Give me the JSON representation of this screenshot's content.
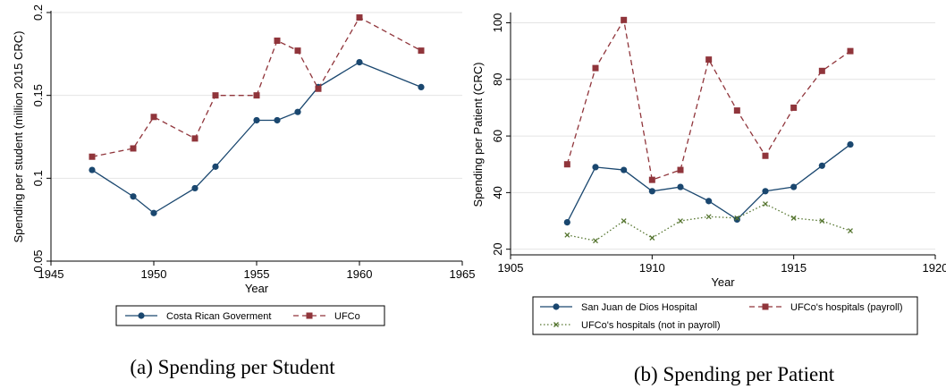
{
  "chart_data": [
    {
      "type": "line",
      "caption": "(a) Spending per Student",
      "xlabel": "Year",
      "ylabel": "Spending per student (million 2015 CRC)",
      "xlim": [
        1945,
        1965
      ],
      "ylim": [
        0.05,
        0.2
      ],
      "xticks": [
        "1945",
        "1950",
        "1955",
        "1960",
        "1965"
      ],
      "yticks": [
        "0.05",
        "0.1",
        "0.15",
        "0.2"
      ],
      "grid": true,
      "legend_placement": "bottom",
      "series": [
        {
          "name": "Costa Rican Goverment",
          "color": "#1a476f",
          "marker": "circle",
          "line": "solid",
          "x": [
            1947,
            1949,
            1950,
            1952,
            1953,
            1955,
            1956,
            1957,
            1958,
            1960,
            1963
          ],
          "y": [
            0.105,
            0.089,
            0.079,
            0.094,
            0.107,
            0.135,
            0.135,
            0.14,
            0.155,
            0.17,
            0.155
          ]
        },
        {
          "name": "UFCo",
          "color": "#90353b",
          "marker": "square",
          "line": "dashed",
          "x": [
            1947,
            1949,
            1950,
            1952,
            1953,
            1955,
            1956,
            1957,
            1958,
            1960,
            1963
          ],
          "y": [
            0.113,
            0.118,
            0.137,
            0.124,
            0.15,
            0.15,
            0.183,
            0.177,
            0.154,
            0.197,
            0.177
          ]
        }
      ]
    },
    {
      "type": "line",
      "caption": "(b) Spending per Patient",
      "xlabel": "Year",
      "ylabel": "Spending per Patient (CRC)",
      "xlim": [
        1905,
        1920
      ],
      "ylim": [
        18,
        103
      ],
      "xticks": [
        "1905",
        "1910",
        "1915",
        "1920"
      ],
      "yticks": [
        "20",
        "40",
        "60",
        "80",
        "100"
      ],
      "grid": true,
      "legend_placement": "bottom",
      "series": [
        {
          "name": "San Juan de Dios Hospital",
          "color": "#1a476f",
          "marker": "circle",
          "line": "solid",
          "x": [
            1907,
            1908,
            1909,
            1910,
            1911,
            1912,
            1913,
            1914,
            1915,
            1916,
            1917
          ],
          "y": [
            29.5,
            49,
            48,
            40.5,
            42,
            37,
            30.5,
            40.5,
            42,
            49.5,
            57
          ]
        },
        {
          "name": "UFCo's hospitals (payroll)",
          "color": "#90353b",
          "marker": "square",
          "line": "dashed",
          "x": [
            1907,
            1908,
            1909,
            1910,
            1911,
            1912,
            1913,
            1914,
            1915,
            1916,
            1917
          ],
          "y": [
            50,
            84,
            101,
            44.5,
            48,
            87,
            69,
            53,
            70,
            83,
            90
          ]
        },
        {
          "name": "UFCo's hospitals (not in payroll)",
          "color": "#55752f",
          "marker": "x",
          "line": "dotted",
          "x": [
            1907,
            1908,
            1909,
            1910,
            1911,
            1912,
            1913,
            1914,
            1915,
            1916,
            1917
          ],
          "y": [
            25,
            23,
            30,
            24,
            30,
            31.5,
            31,
            36,
            31,
            30,
            26.5
          ]
        }
      ]
    }
  ]
}
